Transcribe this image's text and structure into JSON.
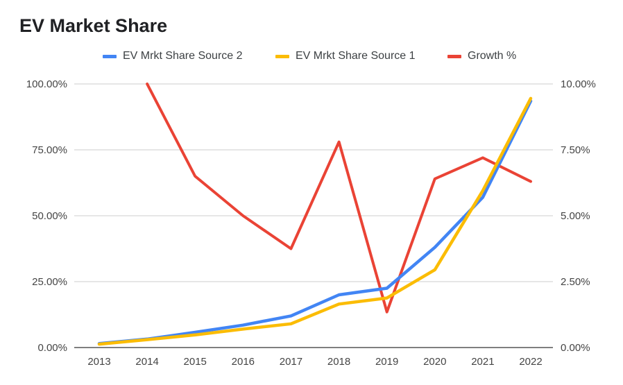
{
  "chart_data": {
    "type": "line",
    "title": "EV Market Share",
    "categories": [
      "2013",
      "2014",
      "2015",
      "2016",
      "2017",
      "2018",
      "2019",
      "2020",
      "2021",
      "2022"
    ],
    "left_axis": {
      "ticks": [
        "0.00%",
        "25.00%",
        "50.00%",
        "75.00%",
        "100.00%"
      ],
      "range": [
        0,
        100
      ]
    },
    "right_axis": {
      "ticks": [
        "0.00%",
        "2.50%",
        "5.00%",
        "7.50%",
        "10.00%"
      ],
      "range": [
        0,
        10
      ]
    },
    "grid": true,
    "legend_position": "top",
    "series": [
      {
        "name": "EV Mrkt Share Source 2",
        "axis": "left",
        "color": "#4285f4",
        "values": [
          1.5,
          3.2,
          5.8,
          8.5,
          12.0,
          20.0,
          22.5,
          38.0,
          57.0,
          93.5
        ]
      },
      {
        "name": "EV Mrkt Share Source 1",
        "axis": "left",
        "color": "#fbbc04",
        "values": [
          1.3,
          3.0,
          4.8,
          7.0,
          9.0,
          16.5,
          18.8,
          29.5,
          59.5,
          94.5
        ]
      },
      {
        "name": "Growth %",
        "axis": "right",
        "color": "#ea4335",
        "values": [
          null,
          10.0,
          6.5,
          5.0,
          3.75,
          7.8,
          1.35,
          6.4,
          7.2,
          6.3
        ]
      }
    ]
  }
}
